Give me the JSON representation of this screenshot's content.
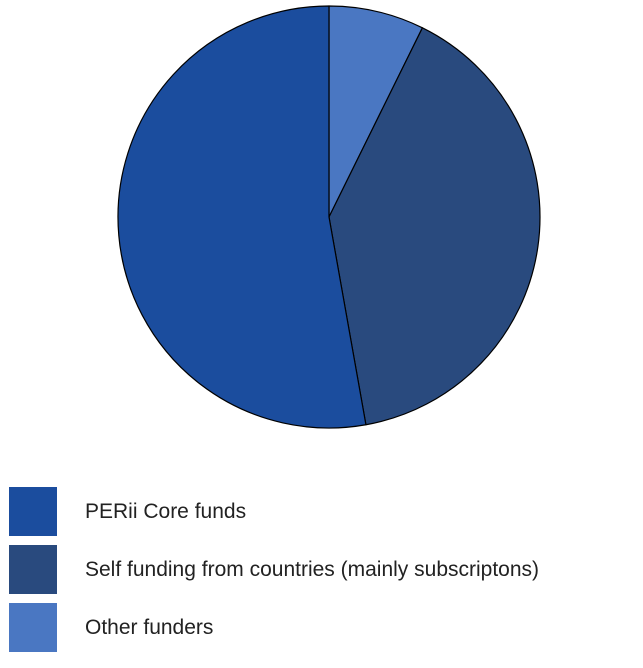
{
  "chart_data": {
    "type": "pie",
    "title": "",
    "categories": [
      "Other funders",
      "Self funding from countries (mainly subscriptons)",
      "PERii Core funds"
    ],
    "values": [
      7.3,
      39.9,
      52.8
    ],
    "unit": "%",
    "colors": [
      "#4a77c2",
      "#294a7e",
      "#1b4d9e"
    ],
    "start": "12 o'clock",
    "direction": "clockwise",
    "legend_position": "bottom"
  },
  "legend": {
    "items": [
      {
        "label": "PERii Core funds",
        "color": "#1b4d9e"
      },
      {
        "label": "Self funding from countries (mainly subscriptons)",
        "color": "#294a7e"
      },
      {
        "label": "Other funders",
        "color": "#4a77c2"
      }
    ]
  }
}
